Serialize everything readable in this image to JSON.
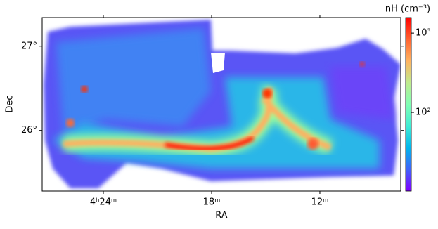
{
  "chart_data": {
    "type": "image",
    "xlabel": "RA",
    "ylabel": "Dec",
    "xlim": [
      4.4565,
      4.1253
    ],
    "xticks": [
      {
        "value": 4.4,
        "label": "4ʰ24ᵐ"
      },
      {
        "value": 4.3,
        "label": "18ᵐ"
      },
      {
        "value": 4.2,
        "label": "12ᵐ"
      }
    ],
    "ylim": [
      25.28,
      27.34
    ],
    "yticks": [
      {
        "value": 26,
        "label": "26°"
      },
      {
        "value": 27,
        "label": "27°"
      }
    ],
    "colorbar": {
      "label": "nH (cm⁻³)",
      "log": true,
      "lim": [
        10.2,
        1570
      ],
      "ticks": [
        {
          "value": 100,
          "label": "10²"
        },
        {
          "value": 1000,
          "label": "10³"
        }
      ],
      "colors": [
        "#8000ff",
        "#4062fa",
        "#00b5eb",
        "#40ecd4",
        "#80ffb4",
        "#c0eb8d",
        "#ffb360",
        "#ff6230",
        "#ff0000"
      ]
    }
  }
}
